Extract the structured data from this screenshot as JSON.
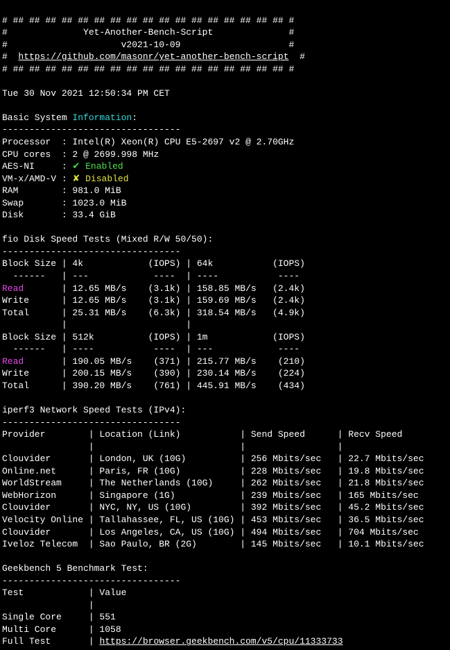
{
  "colors": {
    "bg": "#000000",
    "fg": "#ffffff",
    "cyan": "#33d8d8",
    "green": "#4ee04e",
    "yellow": "#e2e244",
    "magenta": "#e846e8"
  },
  "header": {
    "border": "# ## ## ## ## ## ## ## ## ## ## ## ## ## ## ## ## ## #",
    "title_line": "#              Yet-Another-Bench-Script              #",
    "version_line": "#                     v2021-10-09                    #",
    "url_prefix": "#  ",
    "url": "https://github.com/masonr/yet-another-bench-script",
    "url_suffix": "  #"
  },
  "timestamp": "Tue 30 Nov 2021 12:50:34 PM CET",
  "basic_info": {
    "heading_prefix": "Basic System ",
    "heading_word": "Information",
    "heading_suffix": ":",
    "divider": "---------------------------------",
    "processor_label": "Processor  : ",
    "processor_value": "Intel(R) Xeon(R) CPU E5-2697 v2 @ 2.70GHz",
    "cores_label": "CPU cores  : ",
    "cores_value": "2 @ 2699.998 MHz",
    "aesni_label": "AES-NI     : ",
    "aesni_mark": "✔ ",
    "aesni_value": "Enabled",
    "vmx_label": "VM-x/AMD-V : ",
    "vmx_mark": "✘ ",
    "vmx_value": "Disabled",
    "ram_label": "RAM        : ",
    "ram_value": "981.0 MiB",
    "swap_label": "Swap       : ",
    "swap_value": "1023.0 MiB",
    "disk_label": "Disk       : ",
    "disk_value": "33.4 GiB"
  },
  "fio": {
    "heading": "fio Disk Speed Tests (Mixed R/W 50/50):",
    "divider": "---------------------------------",
    "header1": "Block Size | 4k            (IOPS) | 64k           (IOPS)",
    "dash1": "  ------   | ---            ----  | ----           ---- ",
    "read_lbl": "Read",
    "r1_a": "       | 12.65 MB/s    (3.1k) | 158.85 MB/s   (2.4k)",
    "w1": "Write      | 12.65 MB/s    (3.1k) | 159.69 MB/s   (2.4k)",
    "t1": "Total      | 25.31 MB/s    (6.3k) | 318.54 MB/s   (4.9k)",
    "blank1": "           |                      |                     ",
    "header2": "Block Size | 512k          (IOPS) | 1m            (IOPS)",
    "dash2": "  ------   | ----           ----  | ---            ---- ",
    "r2_a": "       | 190.05 MB/s    (371) | 215.77 MB/s    (210)",
    "w2": "Write      | 200.15 MB/s    (390) | 230.14 MB/s    (224)",
    "t2": "Total      | 390.20 MB/s    (761) | 445.91 MB/s    (434)"
  },
  "iperf": {
    "heading": "iperf3 Network Speed Tests (IPv4):",
    "divider": "---------------------------------",
    "header": "Provider        | Location (Link)           | Send Speed      | Recv Speed     ",
    "blank": "                |                           |                 |                ",
    "row1": "Clouvider       | London, UK (10G)          | 256 Mbits/sec   | 22.7 Mbits/sec ",
    "row2": "Online.net      | Paris, FR (10G)           | 228 Mbits/sec   | 19.8 Mbits/sec ",
    "row3": "WorldStream     | The Netherlands (10G)     | 262 Mbits/sec   | 21.8 Mbits/sec ",
    "row4": "WebHorizon      | Singapore (1G)            | 239 Mbits/sec   | 165 Mbits/sec  ",
    "row5": "Clouvider       | NYC, NY, US (10G)         | 392 Mbits/sec   | 45.2 Mbits/sec ",
    "row6": "Velocity Online | Tallahassee, FL, US (10G) | 453 Mbits/sec   | 36.5 Mbits/sec ",
    "row7": "Clouvider       | Los Angeles, CA, US (10G) | 494 Mbits/sec   | 704 Mbits/sec  ",
    "row8": "Iveloz Telecom  | Sao Paulo, BR (2G)        | 145 Mbits/sec   | 10.1 Mbits/sec "
  },
  "geekbench": {
    "heading": "Geekbench 5 Benchmark Test:",
    "divider": "---------------------------------",
    "header": "Test            | Value                         ",
    "blank": "                |                               ",
    "row1": "Single Core     | 551                           ",
    "row2": "Multi Core      | 1058                          ",
    "full_prefix": "Full Test       | ",
    "full_url": "https://browser.geekbench.com/v5/cpu/11333733"
  }
}
